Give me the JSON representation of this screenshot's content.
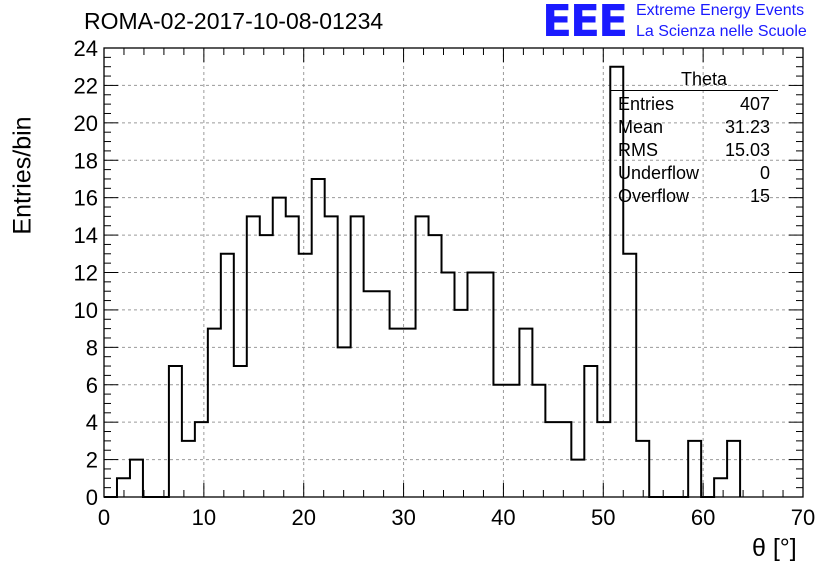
{
  "header": {
    "title": "ROMA-02-2017-10-08-01234",
    "logo_text": "EEE",
    "logo_line1": "Extreme Energy Events",
    "logo_line2": "La Scienza nelle Scuole"
  },
  "stats_box": {
    "title": "Theta",
    "rows": [
      {
        "label": "Entries",
        "value": "407"
      },
      {
        "label": "Mean",
        "value": "31.23"
      },
      {
        "label": "RMS",
        "value": "15.03"
      },
      {
        "label": "Underflow",
        "value": "0"
      },
      {
        "label": "Overflow",
        "value": "15"
      }
    ]
  },
  "chart_data": {
    "type": "bar",
    "histogram": true,
    "bin_width": 1.3,
    "x_start": 0,
    "values": [
      0,
      1,
      2,
      0,
      0,
      7,
      3,
      4,
      9,
      13,
      7,
      15,
      14,
      16,
      15,
      13,
      17,
      15,
      8,
      15,
      11,
      11,
      9,
      9,
      15,
      14,
      12,
      10,
      12,
      12,
      6,
      6,
      9,
      6,
      4,
      4,
      2,
      7,
      4,
      23,
      13,
      3,
      0,
      0,
      0,
      3,
      0,
      1,
      3
    ],
    "title": "ROMA-02-2017-10-08-01234",
    "xlabel": "θ [°]",
    "ylabel": "Entries/bin",
    "xlim": [
      0,
      70
    ],
    "ylim": [
      0,
      24
    ],
    "x_ticks": [
      0,
      10,
      20,
      30,
      40,
      50,
      60,
      70
    ],
    "y_ticks": [
      0,
      2,
      4,
      6,
      8,
      10,
      12,
      14,
      16,
      18,
      20,
      22,
      24
    ],
    "grid": true,
    "line_color": "#000000"
  },
  "colors": {
    "logo": "#1a1aff",
    "grid": "#9a9a9a",
    "line": "#000000"
  }
}
